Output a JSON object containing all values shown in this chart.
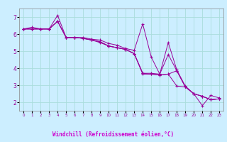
{
  "background_color": "#cceeff",
  "grid_color": "#aadddd",
  "line_color": "#990099",
  "xlabel": "Windchill (Refroidissement éolien,°C)",
  "xlabel_bg": "#330066",
  "xlabel_fg": "#cc00cc",
  "xlim": [
    -0.5,
    23.5
  ],
  "ylim": [
    1.5,
    7.5
  ],
  "xticks": [
    0,
    1,
    2,
    3,
    4,
    5,
    6,
    7,
    8,
    9,
    10,
    11,
    12,
    13,
    14,
    15,
    16,
    17,
    18,
    19,
    20,
    21,
    22,
    23
  ],
  "yticks": [
    2,
    3,
    4,
    5,
    6,
    7
  ],
  "series": [
    {
      "x": [
        0,
        1,
        2,
        3,
        4,
        5,
        6,
        7,
        8,
        9,
        10,
        11,
        12,
        13,
        14,
        15,
        16,
        17,
        18,
        19,
        20,
        21,
        22,
        23
      ],
      "y": [
        6.3,
        6.4,
        6.3,
        6.3,
        6.75,
        5.8,
        5.8,
        5.75,
        5.65,
        5.55,
        5.3,
        5.2,
        5.1,
        4.85,
        3.7,
        3.7,
        3.65,
        4.8,
        3.85,
        2.9,
        2.5,
        2.35,
        2.15,
        2.2
      ]
    },
    {
      "x": [
        0,
        1,
        2,
        3,
        4,
        5,
        6,
        7,
        8,
        9,
        10,
        11,
        12,
        13,
        14,
        15,
        16,
        17,
        18,
        19,
        20,
        21,
        22,
        23
      ],
      "y": [
        6.3,
        6.3,
        6.3,
        6.3,
        7.1,
        5.8,
        5.8,
        5.8,
        5.7,
        5.65,
        5.45,
        5.35,
        5.15,
        5.05,
        6.6,
        4.65,
        3.65,
        5.5,
        3.9,
        2.95,
        2.5,
        1.8,
        2.4,
        2.25
      ]
    },
    {
      "x": [
        0,
        1,
        2,
        3,
        4,
        5,
        6,
        7,
        8,
        9,
        10,
        11,
        12,
        13,
        14,
        15,
        16,
        17,
        18,
        19,
        20,
        21,
        22,
        23
      ],
      "y": [
        6.3,
        6.3,
        6.3,
        6.3,
        6.75,
        5.8,
        5.8,
        5.75,
        5.65,
        5.55,
        5.3,
        5.2,
        5.1,
        4.85,
        3.7,
        3.65,
        3.6,
        3.65,
        3.85,
        2.9,
        2.5,
        2.35,
        2.15,
        2.2
      ]
    },
    {
      "x": [
        0,
        1,
        2,
        3,
        4,
        5,
        6,
        7,
        8,
        9,
        10,
        11,
        12,
        13,
        14,
        15,
        16,
        17,
        18,
        19,
        20,
        21,
        22,
        23
      ],
      "y": [
        6.3,
        6.3,
        6.3,
        6.3,
        6.75,
        5.8,
        5.8,
        5.75,
        5.65,
        5.5,
        5.3,
        5.2,
        5.1,
        4.85,
        3.65,
        3.65,
        3.6,
        3.65,
        2.95,
        2.9,
        2.5,
        2.35,
        2.15,
        2.2
      ]
    }
  ]
}
